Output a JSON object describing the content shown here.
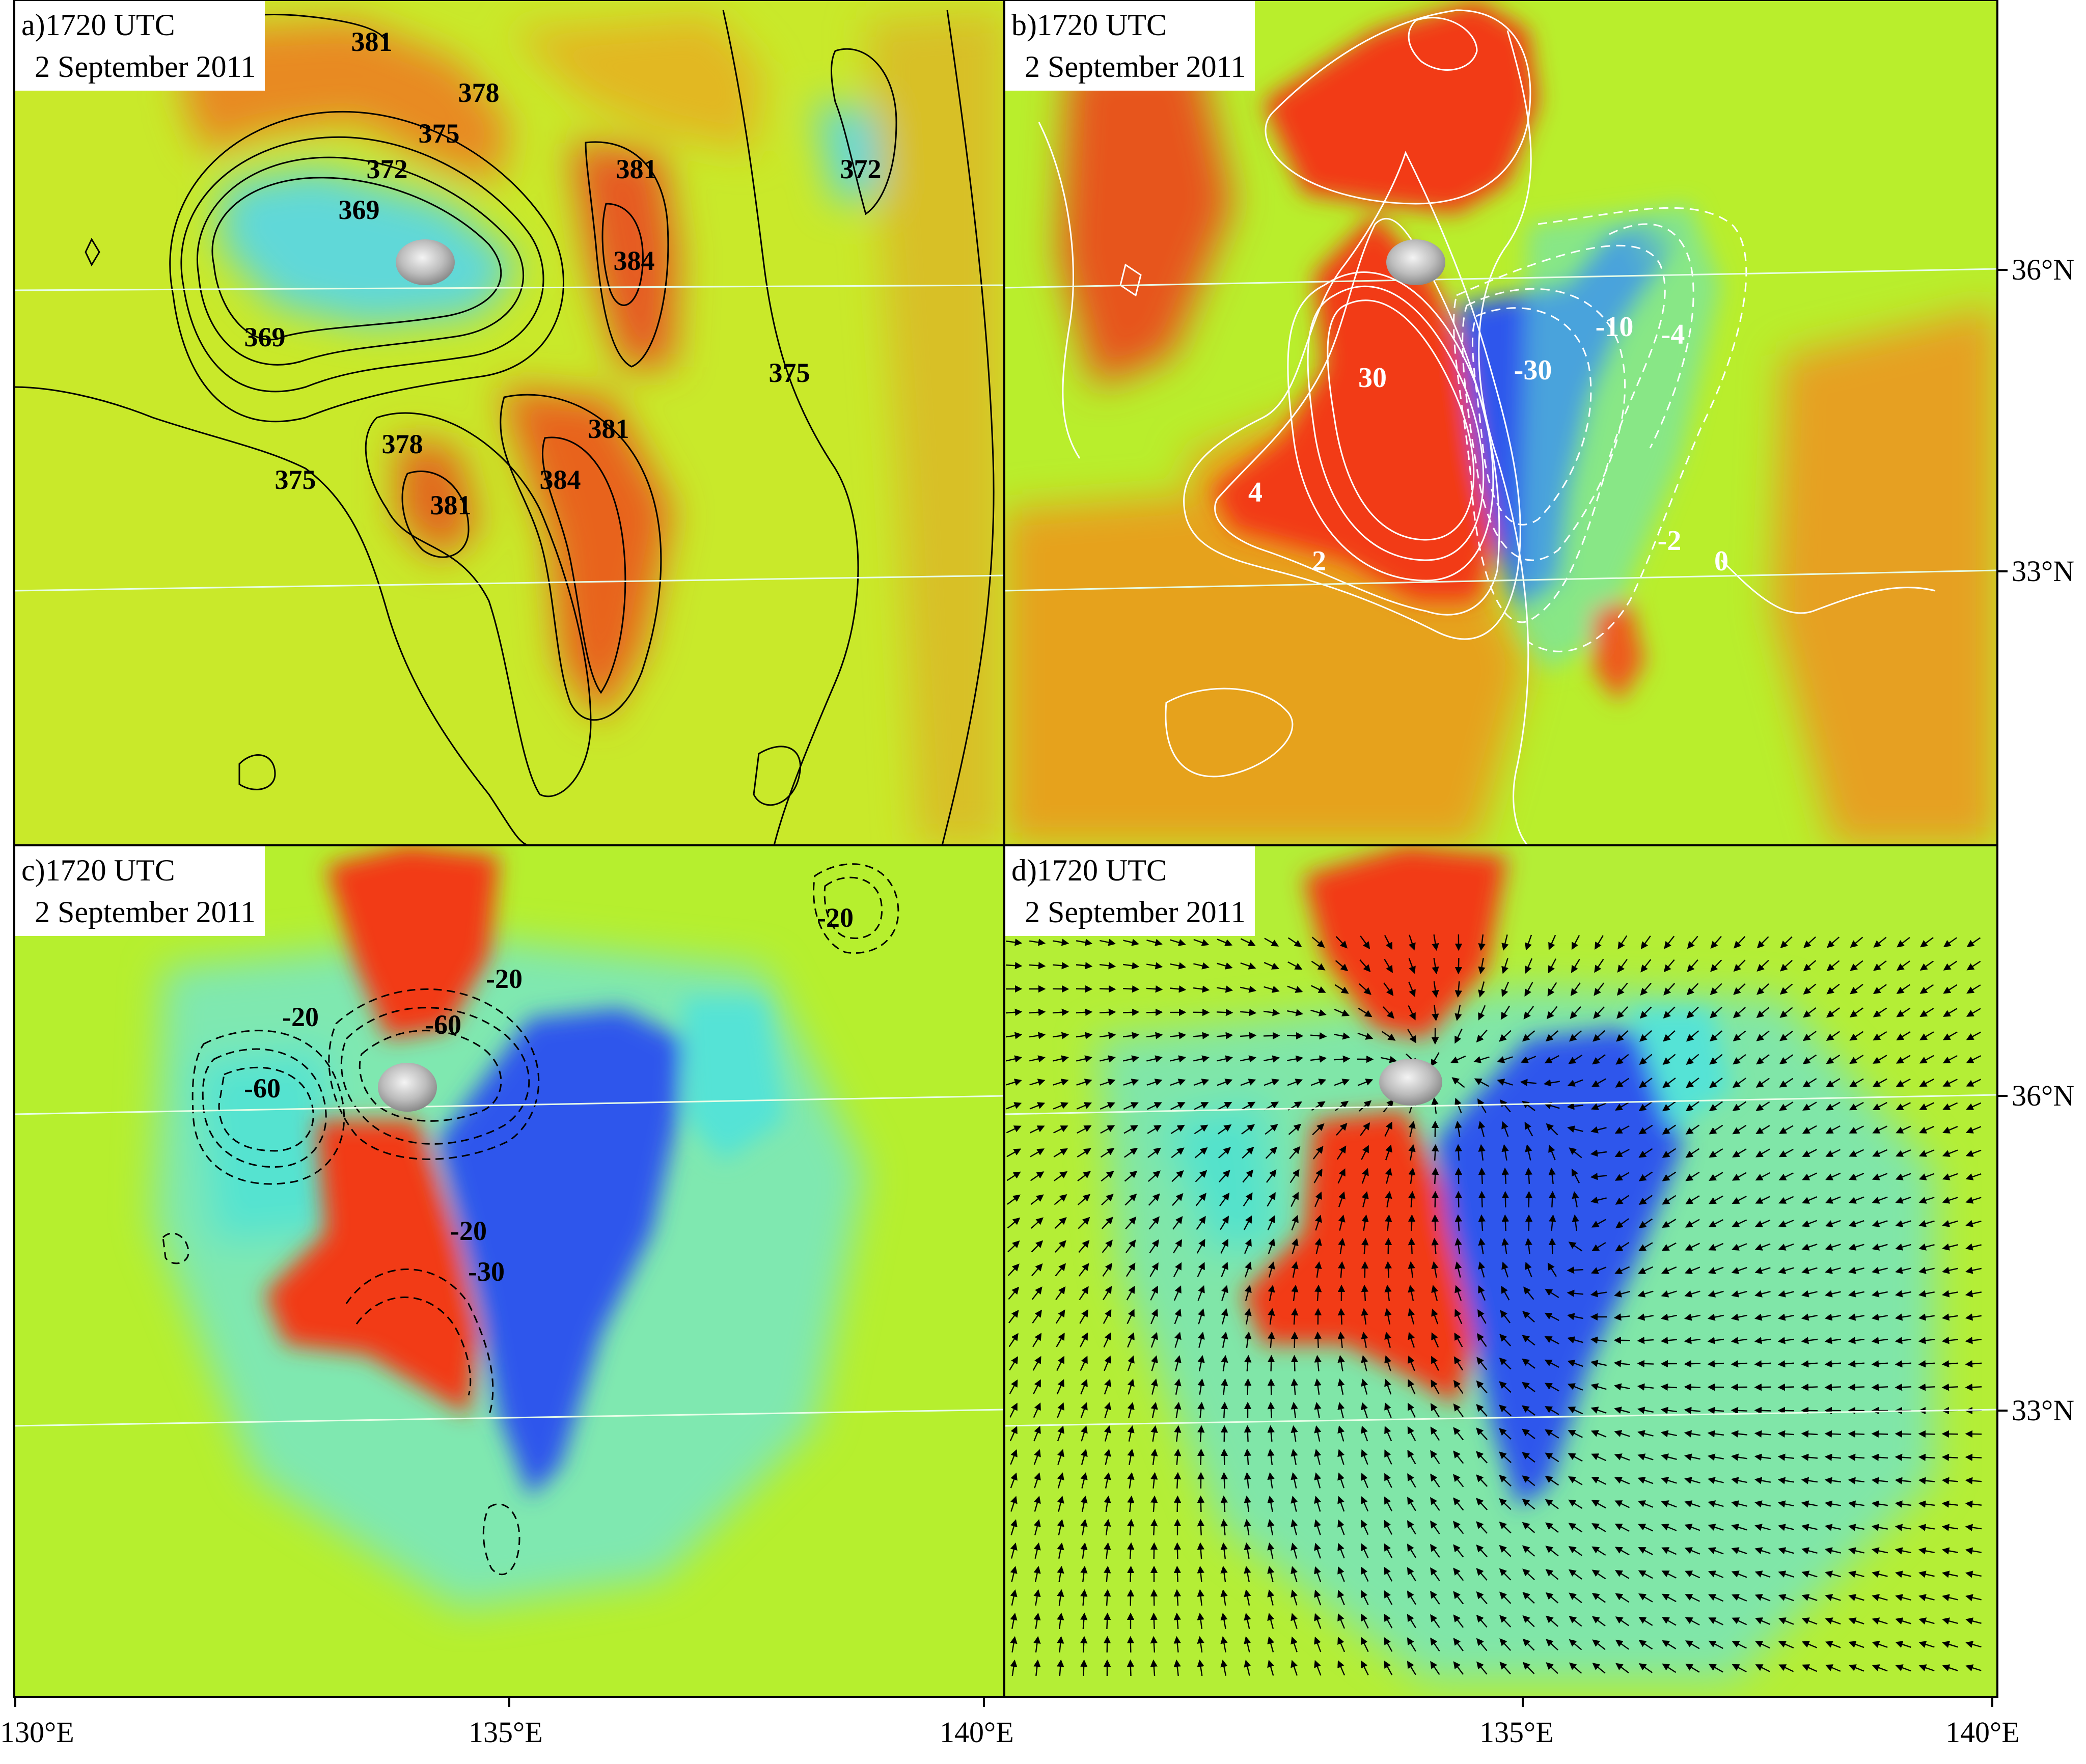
{
  "figure": {
    "panels": [
      {
        "id": "a",
        "title_line1": "a)1720 UTC",
        "title_line2": "2 September 2011",
        "contour_labels": [
          "381",
          "378",
          "375",
          "372",
          "369",
          "381",
          "384",
          "372",
          "369",
          "375",
          "378",
          "381",
          "384",
          "375",
          "381"
        ]
      },
      {
        "id": "b",
        "title_line1": "b)1720 UTC",
        "title_line2": "2 September 2011",
        "contour_labels": [
          "30",
          "-30",
          "-10",
          "-4",
          "4",
          "2",
          "-2",
          "0"
        ]
      },
      {
        "id": "c",
        "title_line1": "c)1720 UTC",
        "title_line2": "2 September 2011",
        "contour_labels": [
          "-20",
          "-20",
          "-60",
          "-20",
          "-60",
          "-20",
          "-30"
        ]
      },
      {
        "id": "d",
        "title_line1": "d)1720 UTC",
        "title_line2": "2 September 2011",
        "contour_labels": []
      }
    ],
    "x_ticks": [
      "130°E",
      "135°E",
      "140°E"
    ],
    "y_ticks": [
      "36°N",
      "33°N"
    ]
  },
  "colors": {
    "background_field": "#b6ef2a",
    "warm": "#f03a1c",
    "orange": "#e9a11c",
    "cold": "#2e58ee",
    "cyan": "#55e3d6",
    "contour_black": "#000000",
    "contour_white": "#ffffff"
  }
}
